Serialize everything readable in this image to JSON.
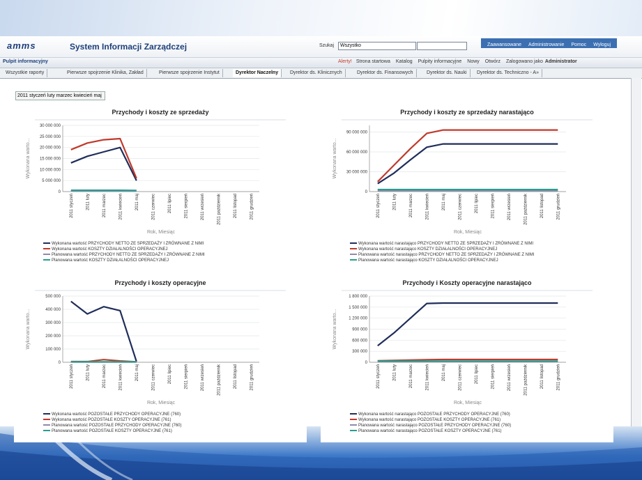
{
  "header": {
    "logo": "amms",
    "title": "System Informacji Zarządczej",
    "search_label": "Szukaj",
    "search_scope": "Wszystko",
    "links": [
      "Zaawansowane",
      "Administrowanie",
      "Pomoc",
      "Wyloguj"
    ]
  },
  "toolbar": {
    "title": "Pulpit informacyjny",
    "alert": "Alerty!",
    "links": [
      "Strona startowa",
      "Katalog",
      "Pulpity informacyjne",
      "Nowy",
      "Otwórz"
    ],
    "logged_in_label": "Zalogowano jako",
    "user": "Administrator"
  },
  "tabs": [
    {
      "label": "Wszystkie raporty",
      "active": false
    },
    {
      "label": "Pierwsze spojrzenie Klinika, Zakład",
      "active": false
    },
    {
      "label": "Pierwsze spojrzenie Instytut",
      "active": false
    },
    {
      "label": "Dyrektor Naczelny",
      "active": true
    },
    {
      "label": "Dyrektor ds. Klinicznych",
      "active": false
    },
    {
      "label": "Dyrektor ds. Finansowych",
      "active": false
    },
    {
      "label": "Dyrektor ds. Nauki",
      "active": false
    },
    {
      "label": "Dyrektor ds. Techniczno - A»",
      "active": false
    }
  ],
  "filter": [
    "2011",
    "styczeń",
    "luty",
    "marzec",
    "kwiecień",
    "maj"
  ],
  "chart_data": [
    {
      "type": "line",
      "title": "Przychody i koszty ze sprzedaży",
      "y_label": "Wykonana warto...",
      "x_label": "Rok, Miesiąc",
      "grid": true,
      "categories": [
        "2011 styczeń",
        "2011 luty",
        "2011 marzec",
        "2011 kwiecień",
        "2011 maj",
        "2011 czerwiec",
        "2011 lipiec",
        "2011 sierpień",
        "2011 wrzesień",
        "2011 październik",
        "2011 listopad",
        "2011 grudzień"
      ],
      "ylim": [
        0,
        30000000
      ],
      "yticks": [
        0,
        {
          "value": 5000000,
          "label": "5 000 000"
        },
        {
          "value": 10000000,
          "label": "10 000 000"
        },
        {
          "value": 15000000,
          "label": "15 000 000"
        },
        {
          "value": 20000000,
          "label": "20 000 000"
        },
        {
          "value": 25000000,
          "label": "25 000 000"
        },
        {
          "value": 30000000,
          "label": "30 000 000"
        }
      ],
      "series": [
        {
          "name": "Wykonana wartość PRZYCHODY NETTO ZE SPRZEDAŻY I ZRÓWNANE Z NIMI",
          "color": "#1f2d5a",
          "values": [
            13000000,
            16000000,
            18000000,
            20000000,
            5000000,
            null,
            null,
            null,
            null,
            null,
            null,
            null
          ]
        },
        {
          "name": "Wykonana wartość KOSZTY DZIAŁALNOŚCI OPERACYJNEJ",
          "color": "#c0392b",
          "values": [
            19000000,
            22000000,
            23500000,
            24000000,
            6000000,
            null,
            null,
            null,
            null,
            null,
            null,
            null
          ]
        },
        {
          "name": "Planowana wartość PRZYCHODY NETTO ZE SPRZEDAŻY I ZRÓWNANE Z NIMI",
          "color": "#8e8aa8",
          "values": [
            300000,
            300000,
            300000,
            300000,
            300000,
            null,
            null,
            null,
            null,
            null,
            null,
            null
          ]
        },
        {
          "name": "Planowana wartość KOSZTY DZIAŁALNOŚCI OPERACYJNEJ",
          "color": "#2a9d8f",
          "values": [
            600000,
            600000,
            600000,
            600000,
            500000,
            null,
            null,
            null,
            null,
            null,
            null,
            null
          ]
        }
      ]
    },
    {
      "type": "line",
      "title": "Przychody i koszty ze sprzedaży narastająco",
      "y_label": "Wykonana warto...",
      "x_label": "Rok, Miesiąc",
      "grid": true,
      "categories": [
        "2011 styczeń",
        "2011 luty",
        "2011 marzec",
        "2011 kwiecień",
        "2011 maj",
        "2011 czerwiec",
        "2011 lipiec",
        "2011 sierpień",
        "2011 wrzesień",
        "2011 październik",
        "2011 listopad",
        "2011 grudzień"
      ],
      "ylim": [
        0,
        100000000
      ],
      "yticks": [
        0,
        {
          "value": 30000000,
          "label": "30 000 000"
        },
        {
          "value": 60000000,
          "label": "60 000 000"
        },
        {
          "value": 90000000,
          "label": "90 000 000"
        }
      ],
      "series": [
        {
          "name": "Wykonana wartość narastająco PRZYCHODY NETTO ZE SPRZEDAŻY I ZRÓWNANE Z NIMI",
          "color": "#1f2d5a",
          "values": [
            12000000,
            28000000,
            48000000,
            67000000,
            72000000,
            72000000,
            72000000,
            72000000,
            72000000,
            72000000,
            72000000,
            72000000
          ]
        },
        {
          "name": "Wykonana wartość narastająco KOSZTY DZIAŁALNOŚCI OPERACYJNEJ",
          "color": "#c0392b",
          "values": [
            15000000,
            40000000,
            65000000,
            88000000,
            93000000,
            93000000,
            93000000,
            93000000,
            93000000,
            93000000,
            93000000,
            93000000
          ]
        },
        {
          "name": "Planowana wartość narastająco PRZYCHODY NETTO ZE SPRZEDAŻY I ZRÓWNANE Z NIMI",
          "color": "#8e8aa8",
          "values": [
            1500000,
            1500000,
            1500000,
            1500000,
            1500000,
            1500000,
            1500000,
            1500000,
            1500000,
            1500000,
            1500000,
            1500000
          ]
        },
        {
          "name": "Planowana wartość narastająco KOSZTY DZIAŁALNOŚCI OPERACYJNEJ",
          "color": "#2a9d8f",
          "values": [
            3000000,
            3000000,
            3000000,
            3000000,
            3000000,
            3000000,
            3000000,
            3000000,
            3000000,
            3000000,
            3000000,
            3000000
          ]
        }
      ]
    },
    {
      "type": "line",
      "title": "Przychody i koszty operacyjne",
      "y_label": "Wykonana warto...",
      "x_label": "Rok, Miesiąc",
      "grid": true,
      "categories": [
        "2011 styczeń",
        "2011 luty",
        "2011 marzec",
        "2011 kwiecień",
        "2011 maj",
        "2011 czerwiec",
        "2011 lipiec",
        "2011 sierpień",
        "2011 wrzesień",
        "2011 październik",
        "2011 listopad",
        "2011 grudzień"
      ],
      "ylim": [
        0,
        500000
      ],
      "yticks": [
        0,
        {
          "value": 100000,
          "label": "100 000"
        },
        {
          "value": 200000,
          "label": "200 000"
        },
        {
          "value": 300000,
          "label": "300 000"
        },
        {
          "value": 400000,
          "label": "400 000"
        },
        {
          "value": 500000,
          "label": "500 000"
        }
      ],
      "series": [
        {
          "name": "Wykonana wartość POZOSTAŁE PRZYCHODY OPERACYJNE (760)",
          "color": "#1f2d5a",
          "values": [
            460000,
            365000,
            420000,
            390000,
            5000,
            null,
            null,
            null,
            null,
            null,
            null,
            null
          ]
        },
        {
          "name": "Wykonana wartość POZOSTAŁE KOSZTY OPERACYJNE (761)",
          "color": "#c0392b",
          "values": [
            5000,
            5000,
            20000,
            10000,
            3000,
            null,
            null,
            null,
            null,
            null,
            null,
            null
          ]
        },
        {
          "name": "Planowana wartość POZOSTAŁE PRZYCHODY OPERACYJNE (760)",
          "color": "#8e8aa8",
          "values": [
            2000,
            2000,
            2000,
            2000,
            2000,
            null,
            null,
            null,
            null,
            null,
            null,
            null
          ]
        },
        {
          "name": "Planowana wartość POZOSTAŁE KOSZTY OPERACYJNE (761)",
          "color": "#2a9d8f",
          "values": [
            3000,
            3000,
            3000,
            3000,
            3000,
            null,
            null,
            null,
            null,
            null,
            null,
            null
          ]
        }
      ]
    },
    {
      "type": "line",
      "title": "Przychody i Koszty operacyjne narastająco",
      "y_label": "Wykonana warto...",
      "x_label": "Rok, Miesiąc",
      "grid": true,
      "categories": [
        "2011 styczeń",
        "2011 luty",
        "2011 marzec",
        "2011 kwiecień",
        "2011 maj",
        "2011 czerwiec",
        "2011 lipiec",
        "2011 sierpień",
        "2011 wrzesień",
        "2011 październik",
        "2011 listopad",
        "2011 grudzień"
      ],
      "ylim": [
        0,
        1800000
      ],
      "yticks": [
        0,
        {
          "value": 300000,
          "label": "300 000"
        },
        {
          "value": 600000,
          "label": "600 000"
        },
        {
          "value": 900000,
          "label": "900 000"
        },
        {
          "value": 1200000,
          "label": "1 200 000"
        },
        {
          "value": 1500000,
          "label": "1 500 000"
        },
        {
          "value": 1800000,
          "label": "1 800 000"
        }
      ],
      "series": [
        {
          "name": "Wykonana wartość narastająco POZOSTAŁE PRZYCHODY OPERACYJNE (760)",
          "color": "#1f2d5a",
          "values": [
            450000,
            800000,
            1200000,
            1600000,
            1610000,
            1610000,
            1610000,
            1610000,
            1610000,
            1610000,
            1610000,
            1610000
          ]
        },
        {
          "name": "Wykonana wartość narastająco POZOSTAŁE KOSZTY OPERACYJNE (761)",
          "color": "#c0392b",
          "values": [
            40000,
            50000,
            60000,
            70000,
            75000,
            75000,
            75000,
            75000,
            75000,
            75000,
            75000,
            75000
          ]
        },
        {
          "name": "Planowana wartość narastająco POZOSTAŁE PRZYCHODY OPERACYJNE (760)",
          "color": "#8e8aa8",
          "values": [
            20000,
            20000,
            20000,
            20000,
            20000,
            20000,
            20000,
            20000,
            20000,
            20000,
            20000,
            20000
          ]
        },
        {
          "name": "Planowana wartość narastająco POZOSTAŁE KOSZTY OPERACYJNE (761)",
          "color": "#2a9d8f",
          "values": [
            30000,
            30000,
            30000,
            30000,
            30000,
            30000,
            30000,
            30000,
            30000,
            30000,
            30000,
            30000
          ]
        }
      ]
    }
  ]
}
